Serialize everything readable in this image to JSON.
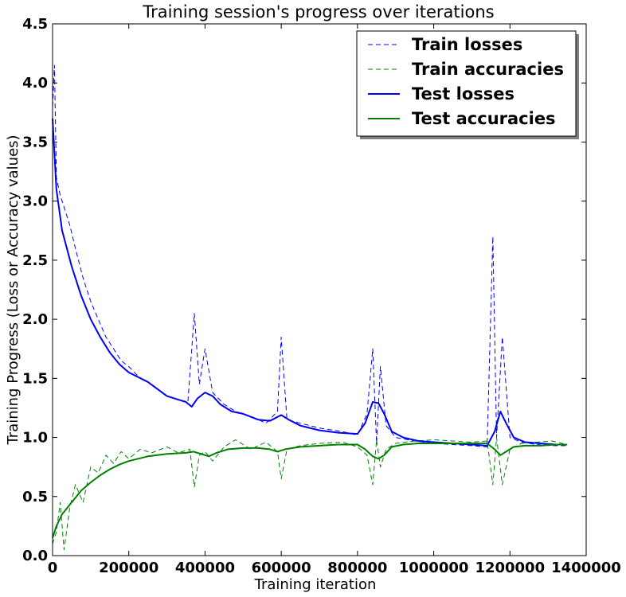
{
  "chart_data": {
    "type": "line",
    "title": "Training session's progress over iterations",
    "xlabel": "Training iteration",
    "ylabel": "Training Progress (Loss or Accuracy values)",
    "xlim": [
      0,
      1400000
    ],
    "ylim": [
      0.0,
      4.5
    ],
    "x_ticks": [
      "0",
      "200000",
      "400000",
      "600000",
      "800000",
      "1000000",
      "1200000",
      "1400000"
    ],
    "y_ticks": [
      "0.0",
      "0.5",
      "1.0",
      "1.5",
      "2.0",
      "2.5",
      "3.0",
      "3.5",
      "4.0",
      "4.5"
    ],
    "legend_position": "top-right",
    "colors": {
      "blue": "#0000ff",
      "green": "#008000"
    },
    "series": [
      {
        "name": "Train losses",
        "style": "dashed",
        "color": "#0000ff",
        "x": [
          0,
          5000,
          10000,
          20000,
          30000,
          45000,
          60000,
          80000,
          100000,
          120000,
          140000,
          160000,
          180000,
          200000,
          230000,
          260000,
          300000,
          330000,
          355000,
          372000,
          385000,
          400000,
          420000,
          450000,
          480000,
          520000,
          560000,
          590000,
          600000,
          615000,
          650000,
          700000,
          760000,
          800000,
          825000,
          840000,
          850000,
          860000,
          875000,
          900000,
          950000,
          1000000,
          1050000,
          1100000,
          1140000,
          1155000,
          1165000,
          1180000,
          1200000,
          1230000,
          1270000,
          1310000,
          1350000
        ],
        "y": [
          3.8,
          4.15,
          3.2,
          3.05,
          2.95,
          2.8,
          2.6,
          2.35,
          2.15,
          2.0,
          1.85,
          1.75,
          1.65,
          1.6,
          1.5,
          1.45,
          1.35,
          1.32,
          1.3,
          2.05,
          1.45,
          1.75,
          1.38,
          1.28,
          1.22,
          1.18,
          1.12,
          1.22,
          1.85,
          1.15,
          1.12,
          1.08,
          1.05,
          1.02,
          1.2,
          1.75,
          0.95,
          1.6,
          1.1,
          1.0,
          0.97,
          0.95,
          0.94,
          0.93,
          0.92,
          2.7,
          1.0,
          1.85,
          1.0,
          0.96,
          0.94,
          0.93,
          0.93
        ]
      },
      {
        "name": "Train accuracies",
        "style": "dashed",
        "color": "#008000",
        "x": [
          0,
          10000,
          20000,
          30000,
          45000,
          60000,
          80000,
          100000,
          120000,
          140000,
          160000,
          180000,
          200000,
          230000,
          260000,
          300000,
          330000,
          360000,
          372000,
          385000,
          400000,
          420000,
          450000,
          480000,
          520000,
          560000,
          590000,
          600000,
          615000,
          650000,
          700000,
          760000,
          800000,
          825000,
          840000,
          850000,
          860000,
          875000,
          900000,
          950000,
          1000000,
          1050000,
          1100000,
          1140000,
          1155000,
          1165000,
          1180000,
          1200000,
          1230000,
          1270000,
          1310000,
          1350000
        ],
        "y": [
          0.1,
          0.2,
          0.45,
          0.05,
          0.4,
          0.6,
          0.45,
          0.75,
          0.7,
          0.85,
          0.78,
          0.88,
          0.82,
          0.9,
          0.87,
          0.92,
          0.87,
          0.9,
          0.58,
          0.85,
          0.88,
          0.8,
          0.92,
          0.98,
          0.9,
          0.96,
          0.88,
          0.65,
          0.9,
          0.93,
          0.95,
          0.96,
          0.92,
          0.85,
          0.6,
          0.98,
          0.75,
          0.9,
          0.95,
          0.97,
          0.98,
          0.97,
          0.96,
          0.97,
          0.6,
          1.0,
          0.6,
          0.9,
          0.95,
          0.96,
          0.97,
          0.94
        ]
      },
      {
        "name": "Test losses",
        "style": "solid",
        "color": "#0000ff",
        "x": [
          0,
          10000,
          25000,
          50000,
          75000,
          100000,
          125000,
          150000,
          175000,
          200000,
          250000,
          300000,
          330000,
          350000,
          365000,
          380000,
          400000,
          420000,
          440000,
          470000,
          500000,
          540000,
          570000,
          600000,
          620000,
          650000,
          700000,
          750000,
          800000,
          820000,
          840000,
          855000,
          870000,
          890000,
          920000,
          960000,
          1000000,
          1050000,
          1100000,
          1140000,
          1160000,
          1175000,
          1190000,
          1210000,
          1240000,
          1280000,
          1320000,
          1350000
        ],
        "y": [
          3.7,
          3.1,
          2.75,
          2.45,
          2.2,
          2.0,
          1.85,
          1.72,
          1.62,
          1.55,
          1.47,
          1.35,
          1.32,
          1.3,
          1.26,
          1.33,
          1.38,
          1.35,
          1.28,
          1.22,
          1.2,
          1.15,
          1.14,
          1.19,
          1.15,
          1.1,
          1.06,
          1.04,
          1.03,
          1.12,
          1.3,
          1.29,
          1.2,
          1.05,
          1.0,
          0.97,
          0.96,
          0.95,
          0.94,
          0.93,
          1.05,
          1.22,
          1.12,
          1.0,
          0.96,
          0.95,
          0.94,
          0.94
        ]
      },
      {
        "name": "Test accuracies",
        "style": "solid",
        "color": "#008000",
        "x": [
          0,
          10000,
          25000,
          50000,
          75000,
          100000,
          125000,
          150000,
          175000,
          200000,
          250000,
          300000,
          350000,
          370000,
          390000,
          410000,
          430000,
          460000,
          500000,
          540000,
          570000,
          590000,
          610000,
          650000,
          700000,
          750000,
          800000,
          820000,
          840000,
          855000,
          870000,
          890000,
          920000,
          960000,
          1000000,
          1050000,
          1100000,
          1140000,
          1160000,
          1175000,
          1190000,
          1210000,
          1240000,
          1280000,
          1320000,
          1350000
        ],
        "y": [
          0.15,
          0.25,
          0.35,
          0.45,
          0.55,
          0.62,
          0.68,
          0.73,
          0.77,
          0.8,
          0.84,
          0.86,
          0.87,
          0.88,
          0.86,
          0.84,
          0.87,
          0.9,
          0.91,
          0.91,
          0.9,
          0.88,
          0.9,
          0.92,
          0.93,
          0.94,
          0.94,
          0.9,
          0.84,
          0.82,
          0.85,
          0.92,
          0.94,
          0.95,
          0.95,
          0.95,
          0.95,
          0.95,
          0.9,
          0.85,
          0.88,
          0.92,
          0.93,
          0.93,
          0.94,
          0.94
        ]
      }
    ]
  }
}
